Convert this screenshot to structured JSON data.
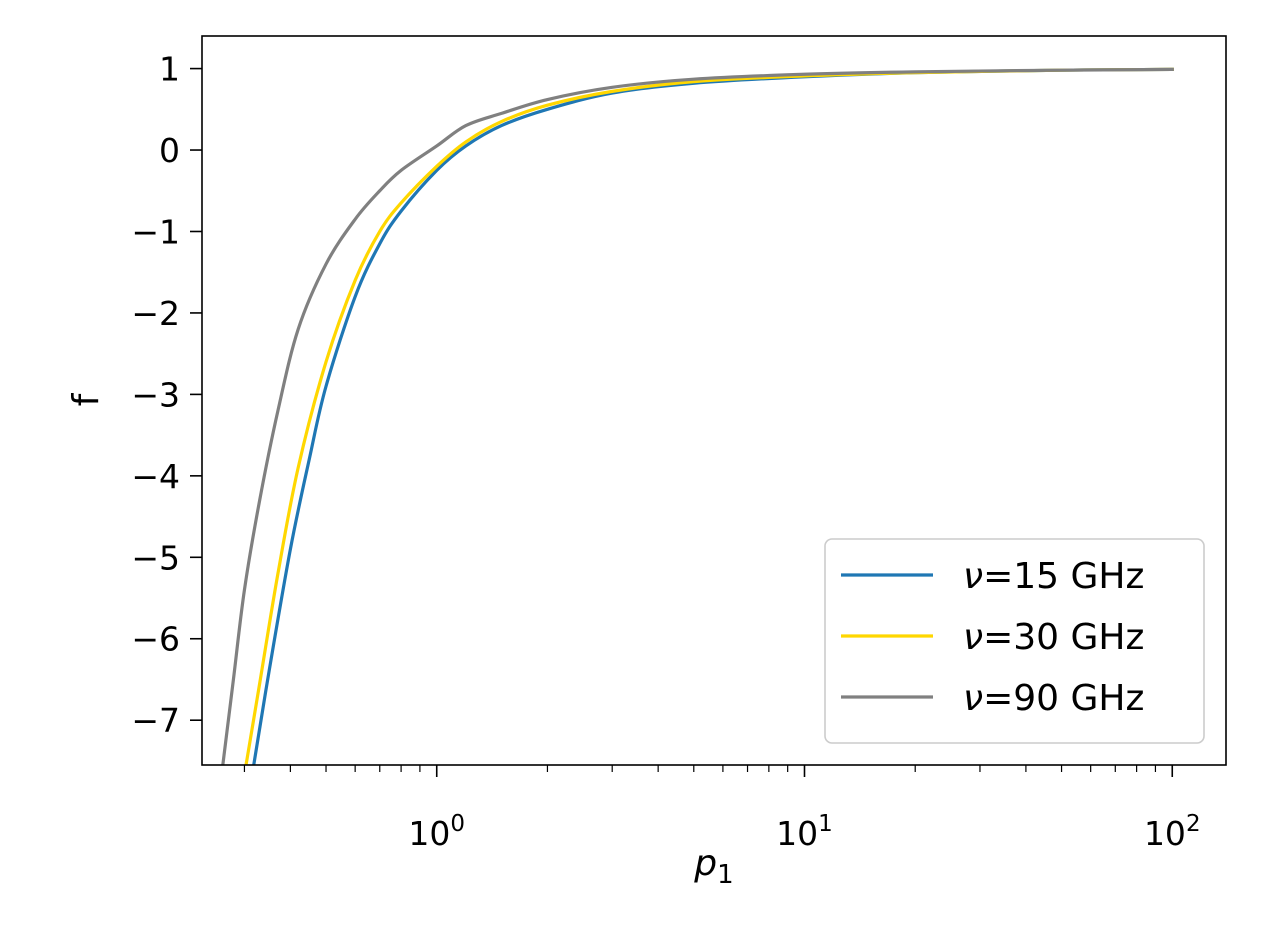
{
  "chart_data": {
    "type": "line",
    "title": "",
    "xlabel": "p",
    "xlabel_subscript": "1",
    "ylabel": "f",
    "xscale": "log",
    "xlim": [
      0.23,
      140
    ],
    "ylim": [
      -7.55,
      1.4
    ],
    "x_ticks": [
      {
        "value": 1,
        "base": "10",
        "exponent": "0"
      },
      {
        "value": 10,
        "base": "10",
        "exponent": "1"
      },
      {
        "value": 100,
        "base": "10",
        "exponent": "2"
      }
    ],
    "y_ticks": [
      {
        "value": 1,
        "label": "1"
      },
      {
        "value": 0,
        "label": "0"
      },
      {
        "value": -1,
        "label": "−1"
      },
      {
        "value": -2,
        "label": "−2"
      },
      {
        "value": -3,
        "label": "−3"
      },
      {
        "value": -4,
        "label": "−4"
      },
      {
        "value": -5,
        "label": "−5"
      },
      {
        "value": -6,
        "label": "−6"
      },
      {
        "value": -7,
        "label": "−7"
      }
    ],
    "grid": false,
    "legend_position": "lower-right",
    "series": [
      {
        "name": "=15 GHz",
        "symbol": "ν",
        "color": "#1f77b4",
        "x": [
          0.318,
          0.35,
          0.4,
          0.45,
          0.5,
          0.6,
          0.7,
          0.8,
          1.0,
          1.2,
          1.5,
          2.0,
          3.0,
          5.0,
          10.0,
          20.0,
          50.0,
          100.0
        ],
        "y": [
          -7.55,
          -6.4,
          -4.9,
          -3.8,
          -2.9,
          -1.8,
          -1.15,
          -0.75,
          -0.25,
          0.05,
          0.3,
          0.5,
          0.7,
          0.82,
          0.9,
          0.95,
          0.98,
          0.99
        ]
      },
      {
        "name": "=30 GHz",
        "symbol": "ν",
        "color": "#ffd700",
        "x": [
          0.303,
          0.33,
          0.37,
          0.42,
          0.5,
          0.6,
          0.7,
          0.8,
          1.0,
          1.2,
          1.5,
          2.0,
          3.0,
          5.0,
          10.0,
          20.0,
          50.0,
          100.0
        ],
        "y": [
          -7.55,
          -6.55,
          -5.2,
          -3.9,
          -2.6,
          -1.6,
          -1.0,
          -0.65,
          -0.2,
          0.1,
          0.35,
          0.55,
          0.72,
          0.84,
          0.91,
          0.95,
          0.98,
          0.99
        ]
      },
      {
        "name": "=90 GHz",
        "symbol": "ν",
        "color": "#808080",
        "x": [
          0.262,
          0.28,
          0.3,
          0.33,
          0.37,
          0.42,
          0.5,
          0.6,
          0.7,
          0.8,
          1.0,
          1.2,
          1.5,
          2.0,
          3.0,
          5.0,
          10.0,
          20.0,
          50.0,
          100.0
        ],
        "y": [
          -7.55,
          -6.5,
          -5.4,
          -4.3,
          -3.2,
          -2.2,
          -1.4,
          -0.85,
          -0.5,
          -0.25,
          0.05,
          0.3,
          0.45,
          0.62,
          0.77,
          0.87,
          0.93,
          0.96,
          0.98,
          0.99
        ]
      }
    ]
  }
}
